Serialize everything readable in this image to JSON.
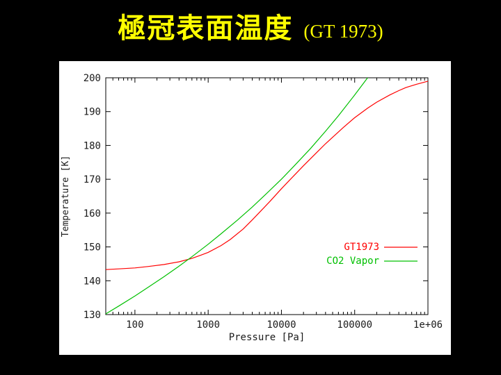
{
  "title": {
    "main": "極冠表面温度",
    "suffix": "(GT 1973)"
  },
  "colors": {
    "background": "#000000",
    "title_text": "#ffff00",
    "panel": "#ffffff",
    "axis": "#000000",
    "tick_text": "#1a1a1a",
    "gt1973": "#ff0000",
    "co2_vapor": "#00c000"
  },
  "chart_data": {
    "type": "line",
    "title": "",
    "xlabel": "Pressure [Pa]",
    "ylabel": "Temperature [K]",
    "x_scale": "log",
    "y_scale": "linear",
    "xlim": [
      40,
      1000000
    ],
    "ylim": [
      130,
      200
    ],
    "grid": false,
    "x_ticks": [
      {
        "value": 100,
        "label": "100"
      },
      {
        "value": 1000,
        "label": "1000"
      },
      {
        "value": 10000,
        "label": "10000"
      },
      {
        "value": 100000,
        "label": "100000"
      },
      {
        "value": 1000000,
        "label": "1e+06"
      }
    ],
    "y_ticks": [
      {
        "value": 130,
        "label": "130"
      },
      {
        "value": 140,
        "label": "140"
      },
      {
        "value": 150,
        "label": "150"
      },
      {
        "value": 160,
        "label": "160"
      },
      {
        "value": 170,
        "label": "170"
      },
      {
        "value": 180,
        "label": "180"
      },
      {
        "value": 190,
        "label": "190"
      },
      {
        "value": 200,
        "label": "200"
      }
    ],
    "legend": {
      "position": "inside center-right",
      "entries": [
        "GT1973",
        "CO2 Vapor"
      ]
    },
    "series": [
      {
        "name": "GT1973",
        "color": "#ff0000",
        "points": [
          [
            40,
            143.3
          ],
          [
            60,
            143.5
          ],
          [
            100,
            143.8
          ],
          [
            150,
            144.2
          ],
          [
            250,
            144.8
          ],
          [
            400,
            145.6
          ],
          [
            600,
            146.6
          ],
          [
            800,
            147.6
          ],
          [
            1000,
            148.4
          ],
          [
            1500,
            150.4
          ],
          [
            2000,
            152.2
          ],
          [
            3000,
            155.3
          ],
          [
            4000,
            158.0
          ],
          [
            5000,
            160.2
          ],
          [
            7000,
            163.5
          ],
          [
            10000,
            167.2
          ],
          [
            15000,
            171.2
          ],
          [
            20000,
            174.0
          ],
          [
            30000,
            177.8
          ],
          [
            40000,
            180.5
          ],
          [
            50000,
            182.4
          ],
          [
            70000,
            185.3
          ],
          [
            100000,
            188.2
          ],
          [
            150000,
            191.0
          ],
          [
            200000,
            192.8
          ],
          [
            300000,
            194.9
          ],
          [
            400000,
            196.2
          ],
          [
            500000,
            197.1
          ],
          [
            700000,
            198.1
          ],
          [
            1000000,
            199.0
          ]
        ]
      },
      {
        "name": "CO2 Vapor",
        "color": "#00c000",
        "points": [
          [
            40,
            130.2
          ],
          [
            60,
            132.5
          ],
          [
            100,
            135.5
          ],
          [
            150,
            138.0
          ],
          [
            250,
            141.2
          ],
          [
            400,
            144.3
          ],
          [
            600,
            147.1
          ],
          [
            1000,
            150.8
          ],
          [
            1500,
            153.9
          ],
          [
            2500,
            157.9
          ],
          [
            4000,
            161.8
          ],
          [
            6000,
            165.4
          ],
          [
            10000,
            170.0
          ],
          [
            15000,
            174.0
          ],
          [
            25000,
            179.1
          ],
          [
            40000,
            184.2
          ],
          [
            60000,
            188.8
          ],
          [
            100000,
            194.9
          ],
          [
            150000,
            200.0
          ]
        ]
      }
    ]
  }
}
